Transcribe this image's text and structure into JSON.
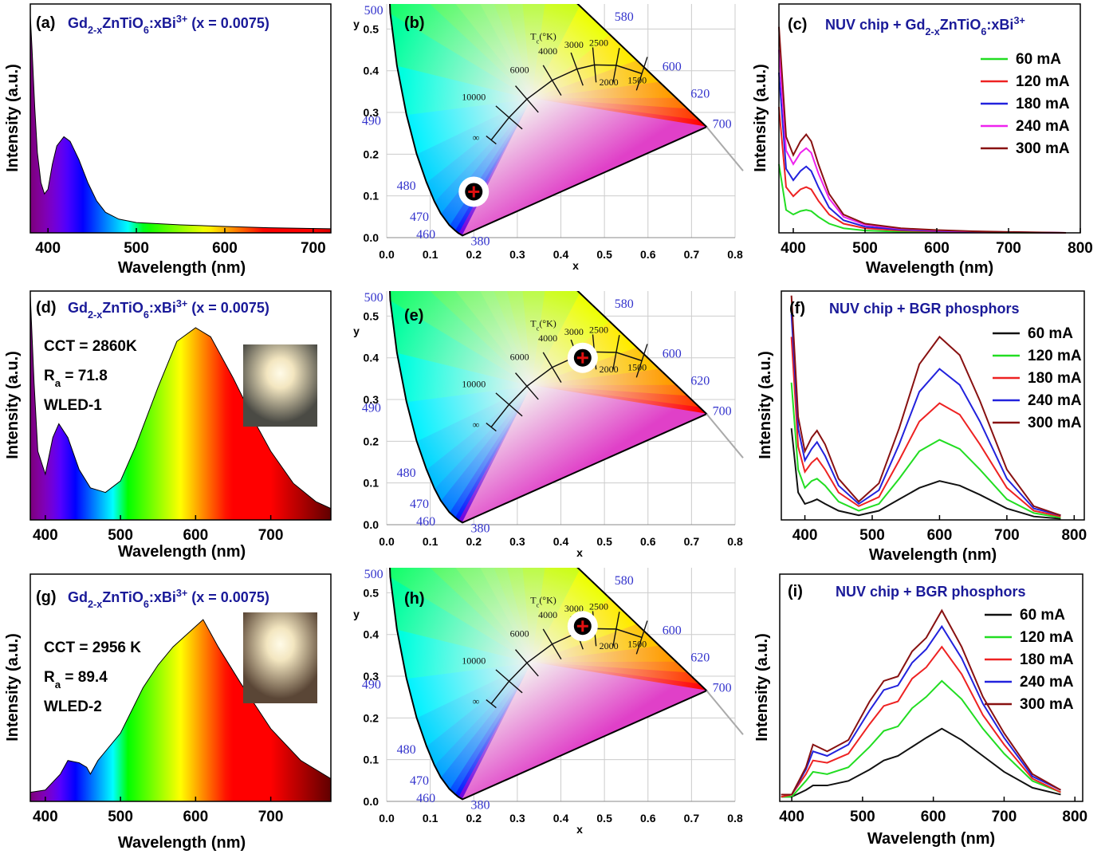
{
  "chart_data": [
    {
      "type": "area",
      "panel_label": "(a)",
      "title": [
        {
          "text": "Gd"
        },
        {
          "text": "2-x",
          "shift": "sub"
        },
        {
          "text": "ZnTiO"
        },
        {
          "text": "6",
          "shift": "sub"
        },
        {
          "text": ":xBi"
        },
        {
          "text": "3+",
          "shift": "super"
        },
        {
          "text": " (x = 0.0075)"
        }
      ],
      "x_label": "Wavelength (nm)",
      "y_label": "Intensity (a.u.)",
      "x": [
        380,
        382,
        385,
        388,
        392,
        396,
        400,
        405,
        410,
        418,
        425,
        435,
        445,
        455,
        465,
        480,
        500,
        550,
        600,
        650,
        720
      ],
      "values": [
        0.95,
        0.8,
        0.55,
        0.35,
        0.22,
        0.17,
        0.19,
        0.3,
        0.38,
        0.42,
        0.4,
        0.32,
        0.22,
        0.14,
        0.09,
        0.06,
        0.045,
        0.035,
        0.028,
        0.022,
        0.018
      ],
      "xlim": [
        380,
        720
      ],
      "xticks": [
        400,
        500,
        600,
        700
      ],
      "ylim": [
        0,
        1
      ]
    },
    {
      "type": "scatter",
      "panel_label": "(b)",
      "x_label": "x",
      "y_label": "y",
      "x": [
        0.2
      ],
      "values": [
        0.11
      ],
      "xlim": [
        0,
        0.8
      ],
      "ylim": [
        0,
        0.56
      ],
      "xticks": [
        {
          "value": 0,
          "label": "0.0"
        },
        0.1,
        0.2,
        0.3,
        0.4,
        0.5,
        0.6,
        0.7,
        0.8
      ],
      "yticks": [
        {
          "value": 0,
          "label": "0.0"
        },
        0.1,
        0.2,
        0.3,
        0.4,
        0.5
      ],
      "grid": true,
      "locus_labels": [
        "500",
        "490",
        "480",
        "470",
        "460",
        "380",
        "580",
        "600",
        "620",
        "700"
      ],
      "temperature_labels": [
        "10000",
        "6000",
        "4000",
        "3000",
        "2500",
        "2000",
        "1500",
        "∞"
      ],
      "temperature_title": [
        {
          "text": "T"
        },
        {
          "text": "c",
          "shift": "sub"
        },
        {
          "text": "(°K)"
        }
      ]
    },
    {
      "type": "line",
      "panel_label": "(c)",
      "title": [
        {
          "text": "NUV chip + Gd"
        },
        {
          "text": "2-x",
          "shift": "sub"
        },
        {
          "text": "ZnTiO"
        },
        {
          "text": "6",
          "shift": "sub"
        },
        {
          "text": ":xBi"
        },
        {
          "text": "3+",
          "shift": "super"
        }
      ],
      "x_label": "Wavelength (nm)",
      "y_label": "Intensity (a.u.)",
      "x": [
        380,
        390,
        400,
        410,
        418,
        425,
        435,
        450,
        470,
        500,
        550,
        600,
        650,
        700,
        780
      ],
      "series": [
        {
          "name": "60 mA",
          "color": "#22dd22",
          "values": [
            0.3,
            0.1,
            0.08,
            0.095,
            0.1,
            0.095,
            0.07,
            0.04,
            0.02,
            0.01,
            0.005,
            0.003,
            0.002,
            0.001,
            0
          ]
        },
        {
          "name": "120 mA",
          "color": "#ee2222",
          "values": [
            0.55,
            0.2,
            0.16,
            0.19,
            0.2,
            0.19,
            0.14,
            0.08,
            0.04,
            0.02,
            0.01,
            0.006,
            0.004,
            0.002,
            0
          ]
        },
        {
          "name": "180 mA",
          "color": "#2222dd",
          "values": [
            0.7,
            0.28,
            0.23,
            0.27,
            0.29,
            0.27,
            0.2,
            0.11,
            0.055,
            0.027,
            0.014,
            0.008,
            0.005,
            0.003,
            0
          ]
        },
        {
          "name": "240 mA",
          "color": "#ee22ee",
          "values": [
            0.8,
            0.36,
            0.3,
            0.35,
            0.37,
            0.35,
            0.26,
            0.15,
            0.07,
            0.035,
            0.018,
            0.01,
            0.006,
            0.003,
            0
          ]
        },
        {
          "name": "300 mA",
          "color": "#881111",
          "values": [
            0.9,
            0.42,
            0.34,
            0.4,
            0.43,
            0.4,
            0.3,
            0.17,
            0.08,
            0.04,
            0.02,
            0.012,
            0.007,
            0.004,
            0
          ]
        }
      ],
      "xlim": [
        380,
        800
      ],
      "xticks": [
        400,
        500,
        600,
        700,
        800
      ],
      "ylim": [
        0,
        1
      ]
    },
    {
      "type": "area",
      "panel_label": "(d)",
      "title": [
        {
          "text": "Gd"
        },
        {
          "text": "2-x",
          "shift": "sub"
        },
        {
          "text": "ZnTiO"
        },
        {
          "text": "6",
          "shift": "sub"
        },
        {
          "text": ":xBi"
        },
        {
          "text": "3+",
          "shift": "super"
        },
        {
          "text": " (x = 0.0075)"
        }
      ],
      "annotations": [
        [
          {
            "text": "CCT = 2860K"
          }
        ],
        [
          {
            "text": "R"
          },
          {
            "text": "a",
            "shift": "sub"
          },
          {
            "text": " = 71.8"
          }
        ],
        [
          {
            "text": "WLED-1"
          }
        ]
      ],
      "x_label": "Wavelength (nm)",
      "y_label": "Intensity (a.u.)",
      "x": [
        380,
        385,
        390,
        400,
        410,
        418,
        430,
        445,
        460,
        480,
        500,
        520,
        550,
        575,
        600,
        620,
        650,
        680,
        700,
        730,
        760,
        780
      ],
      "values": [
        0.98,
        0.6,
        0.3,
        0.2,
        0.36,
        0.42,
        0.36,
        0.22,
        0.14,
        0.12,
        0.17,
        0.32,
        0.58,
        0.78,
        0.84,
        0.8,
        0.62,
        0.42,
        0.3,
        0.16,
        0.08,
        0.05
      ],
      "xlim": [
        380,
        780
      ],
      "xticks": [
        400,
        500,
        600,
        700
      ],
      "ylim": [
        0,
        1
      ]
    },
    {
      "type": "scatter",
      "panel_label": "(e)",
      "x_label": "x",
      "y_label": "y",
      "x": [
        0.45
      ],
      "values": [
        0.4
      ],
      "xlim": [
        0,
        0.8
      ],
      "ylim": [
        0,
        0.56
      ],
      "xticks": [
        {
          "value": 0,
          "label": "0.0"
        },
        0.1,
        0.2,
        0.3,
        0.4,
        0.5,
        0.6,
        0.7,
        0.8
      ],
      "yticks": [
        {
          "value": 0,
          "label": "0.0"
        },
        0.1,
        0.2,
        0.3,
        0.4,
        0.5
      ],
      "grid": true,
      "locus_labels": [
        "500",
        "490",
        "480",
        "470",
        "460",
        "380",
        "580",
        "600",
        "620",
        "700"
      ],
      "temperature_labels": [
        "10000",
        "6000",
        "4000",
        "3000",
        "2500",
        "2000",
        "1500",
        "∞"
      ],
      "temperature_title": [
        {
          "text": "T"
        },
        {
          "text": "c",
          "shift": "sub"
        },
        {
          "text": "(°K)"
        }
      ]
    },
    {
      "type": "line",
      "panel_label": "(f)",
      "title": [
        {
          "text": "NUV chip + BGR phosphors"
        }
      ],
      "x_label": "Wavelength (nm)",
      "y_label": "Intensity (a.u.)",
      "x": [
        380,
        390,
        400,
        410,
        418,
        430,
        450,
        480,
        510,
        540,
        570,
        600,
        630,
        660,
        700,
        740,
        780
      ],
      "series": [
        {
          "name": "60 mA",
          "color": "#111111",
          "values": [
            0.4,
            0.12,
            0.07,
            0.08,
            0.09,
            0.07,
            0.04,
            0.02,
            0.04,
            0.09,
            0.14,
            0.17,
            0.15,
            0.11,
            0.05,
            0.015,
            0.005
          ]
        },
        {
          "name": "120 mA",
          "color": "#22dd22",
          "values": [
            0.6,
            0.22,
            0.14,
            0.17,
            0.18,
            0.15,
            0.08,
            0.04,
            0.07,
            0.18,
            0.3,
            0.35,
            0.31,
            0.22,
            0.09,
            0.03,
            0.01
          ]
        },
        {
          "name": "180 mA",
          "color": "#ee2222",
          "values": [
            0.8,
            0.32,
            0.21,
            0.25,
            0.27,
            0.22,
            0.12,
            0.06,
            0.1,
            0.26,
            0.43,
            0.51,
            0.46,
            0.33,
            0.14,
            0.04,
            0.015
          ]
        },
        {
          "name": "240 mA",
          "color": "#2222dd",
          "values": [
            0.9,
            0.4,
            0.26,
            0.31,
            0.34,
            0.28,
            0.15,
            0.07,
            0.13,
            0.33,
            0.56,
            0.66,
            0.59,
            0.43,
            0.18,
            0.05,
            0.02
          ]
        },
        {
          "name": "300 mA",
          "color": "#881111",
          "values": [
            0.98,
            0.45,
            0.3,
            0.36,
            0.39,
            0.33,
            0.18,
            0.08,
            0.16,
            0.4,
            0.68,
            0.8,
            0.72,
            0.52,
            0.22,
            0.06,
            0.02
          ]
        }
      ],
      "xlim": [
        365,
        815
      ],
      "xticks": [
        400,
        500,
        600,
        700,
        800
      ],
      "ylim": [
        0,
        1
      ]
    },
    {
      "type": "area",
      "panel_label": "(g)",
      "title": [
        {
          "text": "Gd"
        },
        {
          "text": "2-x",
          "shift": "sub"
        },
        {
          "text": "ZnTiO"
        },
        {
          "text": "6",
          "shift": "sub"
        },
        {
          "text": ":xBi"
        },
        {
          "text": "3+",
          "shift": "super"
        },
        {
          "text": " (x = 0.0075)"
        }
      ],
      "annotations": [
        [
          {
            "text": "CCT = 2956 K"
          }
        ],
        [
          {
            "text": "R"
          },
          {
            "text": "a",
            "shift": "sub"
          },
          {
            "text": " = 89.4"
          }
        ],
        [
          {
            "text": "WLED-2"
          }
        ]
      ],
      "x_label": "Wavelength (nm)",
      "y_label": "Intensity (a.u.)",
      "x": [
        380,
        400,
        420,
        430,
        445,
        455,
        460,
        470,
        500,
        530,
        550,
        570,
        590,
        610,
        630,
        660,
        700,
        740,
        780
      ],
      "values": [
        0.04,
        0.05,
        0.12,
        0.18,
        0.17,
        0.15,
        0.12,
        0.18,
        0.3,
        0.5,
        0.6,
        0.68,
        0.74,
        0.8,
        0.68,
        0.52,
        0.32,
        0.18,
        0.1
      ],
      "xlim": [
        380,
        780
      ],
      "xticks": [
        400,
        500,
        600,
        700
      ],
      "ylim": [
        0,
        1
      ]
    },
    {
      "type": "scatter",
      "panel_label": "(h)",
      "x_label": "x",
      "y_label": "y",
      "x": [
        0.45
      ],
      "values": [
        0.42
      ],
      "xlim": [
        0,
        0.8
      ],
      "ylim": [
        0,
        0.56
      ],
      "xticks": [
        {
          "value": 0,
          "label": "0.0"
        },
        0.1,
        0.2,
        0.3,
        0.4,
        0.5,
        0.6,
        0.7,
        0.8
      ],
      "yticks": [
        {
          "value": 0,
          "label": "0.0"
        },
        0.1,
        0.2,
        0.3,
        0.4,
        0.5
      ],
      "grid": true,
      "locus_labels": [
        "500",
        "490",
        "480",
        "470",
        "460",
        "380",
        "580",
        "600",
        "620",
        "700"
      ],
      "temperature_labels": [
        "10000",
        "6000",
        "4000",
        "3000",
        "2500",
        "2000",
        "1500",
        "∞"
      ],
      "temperature_title": [
        {
          "text": "T"
        },
        {
          "text": "c",
          "shift": "sub"
        },
        {
          "text": "(°K)"
        }
      ]
    },
    {
      "type": "line",
      "panel_label": "(i)",
      "title": [
        {
          "text": "NUV chip + BGR phosphors"
        }
      ],
      "x_label": "Wavelength (nm)",
      "y_label": "Intensity (a.u.)",
      "x": [
        385,
        400,
        420,
        430,
        450,
        480,
        510,
        530,
        550,
        570,
        590,
        612,
        640,
        670,
        700,
        740,
        780
      ],
      "series": [
        {
          "name": "60 mA",
          "color": "#111111",
          "values": [
            0.02,
            0.02,
            0.05,
            0.07,
            0.07,
            0.09,
            0.14,
            0.18,
            0.2,
            0.24,
            0.28,
            0.32,
            0.27,
            0.2,
            0.13,
            0.06,
            0.03
          ]
        },
        {
          "name": "120 mA",
          "color": "#22dd22",
          "values": [
            0.02,
            0.02,
            0.09,
            0.13,
            0.12,
            0.15,
            0.24,
            0.31,
            0.33,
            0.41,
            0.46,
            0.53,
            0.45,
            0.32,
            0.21,
            0.09,
            0.04
          ]
        },
        {
          "name": "180 mA",
          "color": "#ee2222",
          "values": [
            0.02,
            0.03,
            0.12,
            0.18,
            0.17,
            0.21,
            0.34,
            0.42,
            0.44,
            0.54,
            0.59,
            0.68,
            0.56,
            0.38,
            0.25,
            0.1,
            0.04
          ]
        },
        {
          "name": "240 mA",
          "color": "#2222dd",
          "values": [
            0.03,
            0.03,
            0.14,
            0.22,
            0.2,
            0.25,
            0.4,
            0.49,
            0.51,
            0.61,
            0.67,
            0.77,
            0.63,
            0.43,
            0.28,
            0.11,
            0.05
          ]
        },
        {
          "name": "300 mA",
          "color": "#881111",
          "values": [
            0.03,
            0.03,
            0.15,
            0.25,
            0.22,
            0.27,
            0.44,
            0.53,
            0.55,
            0.66,
            0.72,
            0.84,
            0.68,
            0.46,
            0.3,
            0.12,
            0.05
          ]
        }
      ],
      "xlim": [
        383,
        811
      ],
      "xticks": [
        400,
        500,
        600,
        700,
        800
      ],
      "ylim": [
        0,
        1
      ]
    }
  ]
}
